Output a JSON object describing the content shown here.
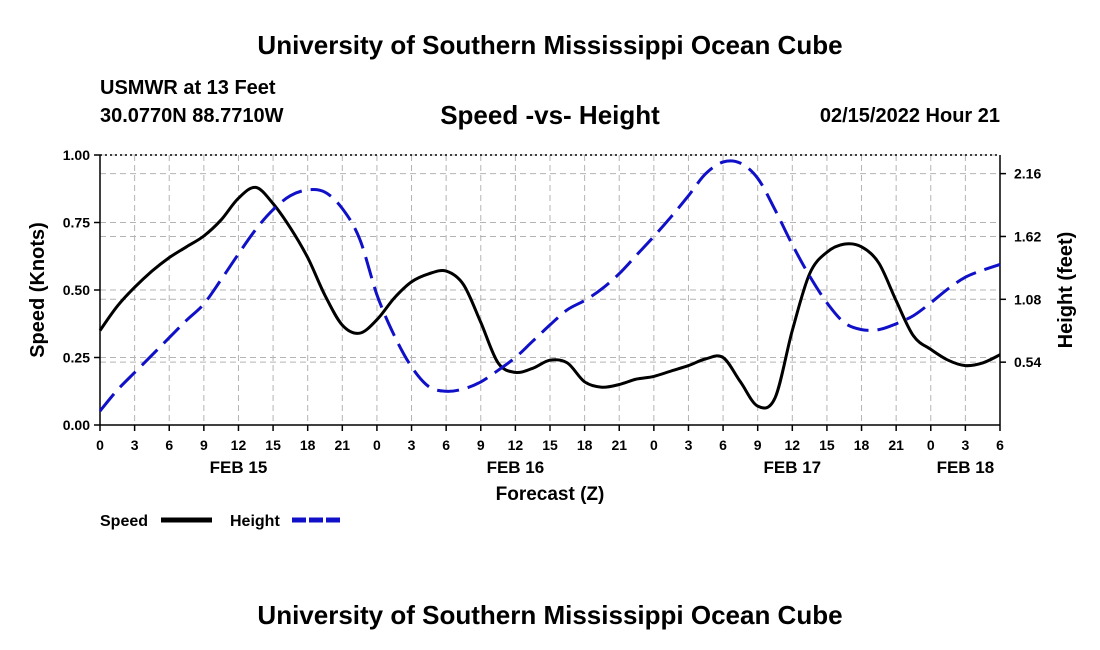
{
  "header": {
    "title": "University of Southern Mississippi Ocean Cube",
    "station": "USMWR at 13 Feet",
    "coords": "30.0770N  88.7710W",
    "subtitle": "Speed -vs- Height",
    "datestamp": "02/15/2022 Hour 21"
  },
  "footer": {
    "title": "University of Southern Mississippi Ocean Cube"
  },
  "colors": {
    "speed": "#000000",
    "height": "#1010c8",
    "grid": "#b4b4b4"
  },
  "chart_data": {
    "type": "line",
    "xlabel": "Forecast (Z)",
    "ylabel_left": "Speed (Knots)",
    "ylabel_right": "Height (feet)",
    "xlim": [
      0,
      78
    ],
    "ylim_left": [
      0,
      1.0
    ],
    "ylim_right": [
      0.0,
      2.32
    ],
    "x_ticks": [
      0,
      3,
      6,
      9,
      12,
      15,
      18,
      21,
      24,
      27,
      30,
      33,
      36,
      39,
      42,
      45,
      48,
      51,
      54,
      57,
      60,
      63,
      66,
      69,
      72,
      75,
      78
    ],
    "x_tick_labels": [
      "0",
      "3",
      "6",
      "9",
      "12",
      "15",
      "18",
      "21",
      "0",
      "3",
      "6",
      "9",
      "12",
      "15",
      "18",
      "21",
      "0",
      "3",
      "6",
      "9",
      "12",
      "15",
      "18",
      "21",
      "0",
      "3",
      "6"
    ],
    "left_ticks": [
      0.0,
      0.25,
      0.5,
      0.75,
      1.0
    ],
    "left_tick_labels": [
      "0.00",
      "0.25",
      "0.50",
      "0.75",
      "1.00"
    ],
    "right_ticks": [
      0.54,
      1.08,
      1.62,
      2.16
    ],
    "right_tick_labels": [
      "0.54",
      "1.08",
      "1.62",
      "2.16"
    ],
    "date_labels": [
      {
        "x": 12,
        "label": "FEB 15"
      },
      {
        "x": 36,
        "label": "FEB 16"
      },
      {
        "x": 60,
        "label": "FEB 17"
      },
      {
        "x": 75,
        "label": "FEB 18"
      }
    ],
    "grid": true,
    "legend_position": "bottom-left",
    "series": [
      {
        "name": "Speed",
        "axis": "left",
        "style": "solid",
        "x": [
          0,
          1.5,
          3,
          4.5,
          6,
          7.5,
          9,
          10.5,
          12,
          13.5,
          15,
          16.5,
          18,
          19.5,
          21,
          22.5,
          24,
          25.5,
          27,
          28.5,
          30,
          31.5,
          33,
          34.5,
          36,
          37.5,
          39,
          40.5,
          42,
          43.5,
          45,
          46.5,
          48,
          49.5,
          51,
          52.5,
          54,
          55.5,
          57,
          58.5,
          60,
          61.5,
          63,
          64.5,
          66,
          67.5,
          69,
          70.5,
          72,
          73.5,
          75,
          76.5,
          78
        ],
        "values": [
          0.35,
          0.44,
          0.51,
          0.57,
          0.62,
          0.66,
          0.7,
          0.76,
          0.84,
          0.88,
          0.82,
          0.73,
          0.62,
          0.48,
          0.37,
          0.34,
          0.39,
          0.47,
          0.53,
          0.56,
          0.57,
          0.52,
          0.38,
          0.23,
          0.195,
          0.21,
          0.24,
          0.23,
          0.16,
          0.14,
          0.15,
          0.17,
          0.18,
          0.2,
          0.22,
          0.245,
          0.25,
          0.16,
          0.07,
          0.1,
          0.35,
          0.56,
          0.64,
          0.67,
          0.66,
          0.6,
          0.46,
          0.33,
          0.28,
          0.24,
          0.22,
          0.23,
          0.26
        ]
      },
      {
        "name": "Height",
        "axis": "right",
        "style": "dashed",
        "x": [
          0,
          1.5,
          3,
          4.5,
          6,
          7.5,
          9,
          10.5,
          12,
          13.5,
          15,
          16.5,
          18,
          19.5,
          21,
          22.5,
          24,
          25.5,
          27,
          28.5,
          30,
          31.5,
          33,
          34.5,
          36,
          37.5,
          39,
          40.5,
          42,
          43.5,
          45,
          46.5,
          48,
          49.5,
          51,
          52.5,
          54,
          55.5,
          57,
          58.5,
          60,
          61.5,
          63,
          64.5,
          66,
          67.5,
          69,
          70.5,
          72,
          73.5,
          75,
          76.5,
          78
        ],
        "values": [
          0.12,
          0.3,
          0.45,
          0.6,
          0.75,
          0.9,
          1.04,
          1.25,
          1.47,
          1.68,
          1.85,
          1.97,
          2.02,
          2.0,
          1.86,
          1.6,
          1.12,
          0.77,
          0.5,
          0.33,
          0.29,
          0.31,
          0.37,
          0.47,
          0.58,
          0.72,
          0.86,
          0.99,
          1.07,
          1.17,
          1.3,
          1.46,
          1.62,
          1.79,
          1.97,
          2.16,
          2.26,
          2.25,
          2.12,
          1.85,
          1.55,
          1.28,
          1.05,
          0.88,
          0.82,
          0.82,
          0.87,
          0.94,
          1.05,
          1.17,
          1.27,
          1.33,
          1.38
        ]
      }
    ]
  }
}
